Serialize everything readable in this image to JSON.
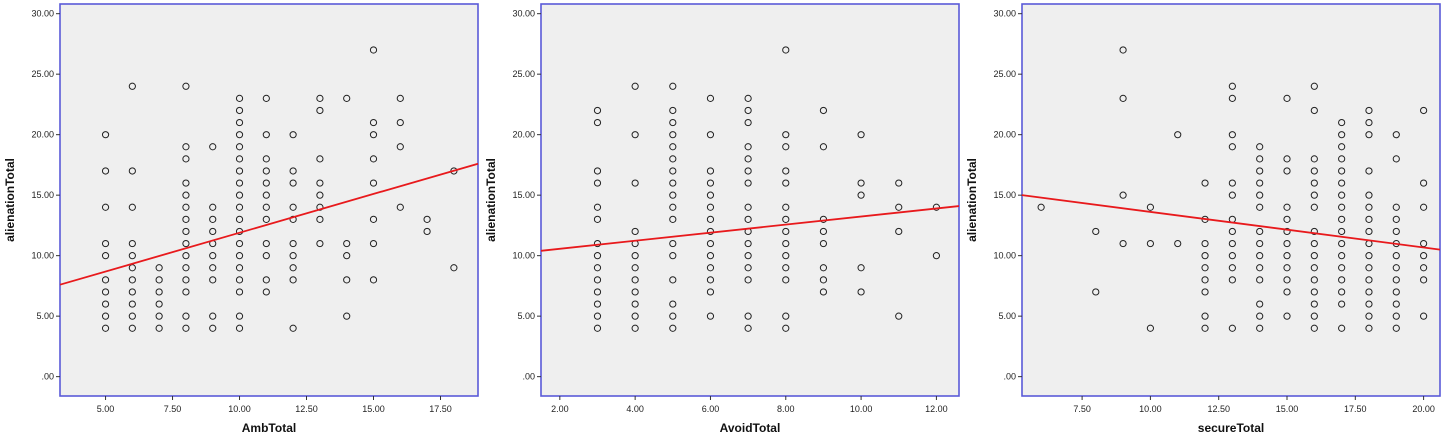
{
  "chart_data": [
    {
      "type": "scatter",
      "xlabel": "AmbTotal",
      "ylabel": "alienationTotal",
      "xlim": [
        3.3,
        18.9
      ],
      "ylim": [
        -1.6,
        30.8
      ],
      "xticks": [
        5,
        7.5,
        10,
        12.5,
        15,
        17.5
      ],
      "xtick_labels": [
        "5.00",
        "7.50",
        "10.00",
        "12.50",
        "15.00",
        "17.50"
      ],
      "yticks": [
        0,
        5,
        10,
        15,
        20,
        25,
        30
      ],
      "ytick_labels": [
        ".00",
        "5.00",
        "10.00",
        "15.00",
        "20.00",
        "25.00",
        "30.00"
      ],
      "grid": false,
      "fit_line": {
        "x": [
          3.3,
          18.9
        ],
        "y": [
          7.6,
          17.6
        ],
        "color": "#e8191c"
      },
      "points": [
        [
          5,
          20
        ],
        [
          5,
          17
        ],
        [
          5,
          14
        ],
        [
          5,
          11
        ],
        [
          5,
          10
        ],
        [
          5,
          8
        ],
        [
          5,
          7
        ],
        [
          5,
          6
        ],
        [
          5,
          5
        ],
        [
          5,
          4
        ],
        [
          6,
          24
        ],
        [
          6,
          17
        ],
        [
          6,
          14
        ],
        [
          6,
          11
        ],
        [
          6,
          10
        ],
        [
          6,
          9
        ],
        [
          6,
          8
        ],
        [
          6,
          7
        ],
        [
          6,
          6
        ],
        [
          6,
          5
        ],
        [
          6,
          4
        ],
        [
          7,
          9
        ],
        [
          7,
          8
        ],
        [
          7,
          7
        ],
        [
          7,
          6
        ],
        [
          7,
          5
        ],
        [
          7,
          4
        ],
        [
          8,
          24
        ],
        [
          8,
          19
        ],
        [
          8,
          18
        ],
        [
          8,
          16
        ],
        [
          8,
          15
        ],
        [
          8,
          14
        ],
        [
          8,
          13
        ],
        [
          8,
          12
        ],
        [
          8,
          11
        ],
        [
          8,
          10
        ],
        [
          8,
          9
        ],
        [
          8,
          8
        ],
        [
          8,
          7
        ],
        [
          8,
          5
        ],
        [
          8,
          4
        ],
        [
          9,
          19
        ],
        [
          9,
          14
        ],
        [
          9,
          13
        ],
        [
          9,
          12
        ],
        [
          9,
          11
        ],
        [
          9,
          10
        ],
        [
          9,
          9
        ],
        [
          9,
          8
        ],
        [
          9,
          5
        ],
        [
          9,
          4
        ],
        [
          10,
          23
        ],
        [
          10,
          22
        ],
        [
          10,
          21
        ],
        [
          10,
          20
        ],
        [
          10,
          19
        ],
        [
          10,
          18
        ],
        [
          10,
          17
        ],
        [
          10,
          16
        ],
        [
          10,
          15
        ],
        [
          10,
          14
        ],
        [
          10,
          13
        ],
        [
          10,
          12
        ],
        [
          10,
          11
        ],
        [
          10,
          10
        ],
        [
          10,
          9
        ],
        [
          10,
          8
        ],
        [
          10,
          7
        ],
        [
          10,
          5
        ],
        [
          10,
          4
        ],
        [
          11,
          23
        ],
        [
          11,
          20
        ],
        [
          11,
          18
        ],
        [
          11,
          17
        ],
        [
          11,
          16
        ],
        [
          11,
          15
        ],
        [
          11,
          14
        ],
        [
          11,
          13
        ],
        [
          11,
          11
        ],
        [
          11,
          10
        ],
        [
          11,
          8
        ],
        [
          11,
          7
        ],
        [
          12,
          20
        ],
        [
          12,
          17
        ],
        [
          12,
          16
        ],
        [
          12,
          14
        ],
        [
          12,
          13
        ],
        [
          12,
          11
        ],
        [
          12,
          10
        ],
        [
          12,
          9
        ],
        [
          12,
          8
        ],
        [
          12,
          4
        ],
        [
          13,
          23
        ],
        [
          13,
          22
        ],
        [
          13,
          18
        ],
        [
          13,
          16
        ],
        [
          13,
          15
        ],
        [
          13,
          14
        ],
        [
          13,
          13
        ],
        [
          13,
          11
        ],
        [
          14,
          23
        ],
        [
          14,
          11
        ],
        [
          14,
          10
        ],
        [
          14,
          8
        ],
        [
          14,
          5
        ],
        [
          15,
          27
        ],
        [
          15,
          21
        ],
        [
          15,
          20
        ],
        [
          15,
          18
        ],
        [
          15,
          16
        ],
        [
          15,
          13
        ],
        [
          15,
          11
        ],
        [
          15,
          8
        ],
        [
          16,
          23
        ],
        [
          16,
          21
        ],
        [
          16,
          19
        ],
        [
          16,
          14
        ],
        [
          17,
          13
        ],
        [
          17,
          12
        ],
        [
          18,
          17
        ],
        [
          18,
          9
        ]
      ]
    },
    {
      "type": "scatter",
      "xlabel": "AvoidTotal",
      "ylabel": "alienationTotal",
      "xlim": [
        1.5,
        12.6
      ],
      "ylim": [
        -1.6,
        30.8
      ],
      "xticks": [
        2,
        4,
        6,
        8,
        10,
        12
      ],
      "xtick_labels": [
        "2.00",
        "4.00",
        "6.00",
        "8.00",
        "10.00",
        "12.00"
      ],
      "yticks": [
        0,
        5,
        10,
        15,
        20,
        25,
        30
      ],
      "ytick_labels": [
        ".00",
        "5.00",
        "10.00",
        "15.00",
        "20.00",
        "25.00",
        "30.00"
      ],
      "grid": false,
      "fit_line": {
        "x": [
          1.5,
          12.6
        ],
        "y": [
          10.4,
          14.1
        ],
        "color": "#e8191c"
      },
      "points": [
        [
          3,
          22
        ],
        [
          3,
          21
        ],
        [
          3,
          17
        ],
        [
          3,
          16
        ],
        [
          3,
          14
        ],
        [
          3,
          13
        ],
        [
          3,
          11
        ],
        [
          3,
          10
        ],
        [
          3,
          9
        ],
        [
          3,
          8
        ],
        [
          3,
          7
        ],
        [
          3,
          6
        ],
        [
          3,
          5
        ],
        [
          3,
          4
        ],
        [
          4,
          24
        ],
        [
          4,
          20
        ],
        [
          4,
          16
        ],
        [
          4,
          12
        ],
        [
          4,
          11
        ],
        [
          4,
          10
        ],
        [
          4,
          9
        ],
        [
          4,
          8
        ],
        [
          4,
          7
        ],
        [
          4,
          6
        ],
        [
          4,
          5
        ],
        [
          4,
          4
        ],
        [
          5,
          24
        ],
        [
          5,
          22
        ],
        [
          5,
          21
        ],
        [
          5,
          20
        ],
        [
          5,
          19
        ],
        [
          5,
          18
        ],
        [
          5,
          17
        ],
        [
          5,
          16
        ],
        [
          5,
          15
        ],
        [
          5,
          14
        ],
        [
          5,
          13
        ],
        [
          5,
          11
        ],
        [
          5,
          10
        ],
        [
          5,
          8
        ],
        [
          5,
          6
        ],
        [
          5,
          5
        ],
        [
          5,
          4
        ],
        [
          6,
          23
        ],
        [
          6,
          20
        ],
        [
          6,
          17
        ],
        [
          6,
          16
        ],
        [
          6,
          15
        ],
        [
          6,
          14
        ],
        [
          6,
          13
        ],
        [
          6,
          12
        ],
        [
          6,
          11
        ],
        [
          6,
          10
        ],
        [
          6,
          9
        ],
        [
          6,
          8
        ],
        [
          6,
          7
        ],
        [
          6,
          5
        ],
        [
          7,
          23
        ],
        [
          7,
          22
        ],
        [
          7,
          21
        ],
        [
          7,
          19
        ],
        [
          7,
          18
        ],
        [
          7,
          17
        ],
        [
          7,
          16
        ],
        [
          7,
          14
        ],
        [
          7,
          13
        ],
        [
          7,
          12
        ],
        [
          7,
          11
        ],
        [
          7,
          10
        ],
        [
          7,
          9
        ],
        [
          7,
          8
        ],
        [
          7,
          5
        ],
        [
          7,
          4
        ],
        [
          8,
          27
        ],
        [
          8,
          20
        ],
        [
          8,
          19
        ],
        [
          8,
          17
        ],
        [
          8,
          16
        ],
        [
          8,
          14
        ],
        [
          8,
          13
        ],
        [
          8,
          12
        ],
        [
          8,
          11
        ],
        [
          8,
          10
        ],
        [
          8,
          9
        ],
        [
          8,
          8
        ],
        [
          8,
          5
        ],
        [
          8,
          4
        ],
        [
          9,
          22
        ],
        [
          9,
          19
        ],
        [
          9,
          13
        ],
        [
          9,
          12
        ],
        [
          9,
          11
        ],
        [
          9,
          9
        ],
        [
          9,
          8
        ],
        [
          9,
          7
        ],
        [
          10,
          20
        ],
        [
          10,
          16
        ],
        [
          10,
          15
        ],
        [
          10,
          9
        ],
        [
          10,
          7
        ],
        [
          11,
          16
        ],
        [
          11,
          14
        ],
        [
          11,
          12
        ],
        [
          11,
          5
        ],
        [
          12,
          14
        ],
        [
          12,
          10
        ]
      ]
    },
    {
      "type": "scatter",
      "xlabel": "secureTotal",
      "ylabel": "alienationTotal",
      "xlim": [
        5.3,
        20.6
      ],
      "ylim": [
        -1.6,
        30.8
      ],
      "xticks": [
        7.5,
        10,
        12.5,
        15,
        17.5,
        20
      ],
      "xtick_labels": [
        "7.50",
        "10.00",
        "12.50",
        "15.00",
        "17.50",
        "20.00"
      ],
      "yticks": [
        0,
        5,
        10,
        15,
        20,
        25,
        30
      ],
      "ytick_labels": [
        ".00",
        "5.00",
        "10.00",
        "15.00",
        "20.00",
        "25.00",
        "30.00"
      ],
      "grid": false,
      "fit_line": {
        "x": [
          5.3,
          20.6
        ],
        "y": [
          15.0,
          10.5
        ],
        "color": "#e8191c"
      },
      "points": [
        [
          6,
          14
        ],
        [
          8,
          12
        ],
        [
          8,
          7
        ],
        [
          9,
          27
        ],
        [
          9,
          23
        ],
        [
          9,
          15
        ],
        [
          9,
          11
        ],
        [
          10,
          14
        ],
        [
          10,
          11
        ],
        [
          10,
          4
        ],
        [
          11,
          20
        ],
        [
          11,
          11
        ],
        [
          12,
          16
        ],
        [
          12,
          13
        ],
        [
          12,
          11
        ],
        [
          12,
          10
        ],
        [
          12,
          9
        ],
        [
          12,
          8
        ],
        [
          12,
          7
        ],
        [
          12,
          5
        ],
        [
          12,
          4
        ],
        [
          13,
          24
        ],
        [
          13,
          23
        ],
        [
          13,
          20
        ],
        [
          13,
          19
        ],
        [
          13,
          16
        ],
        [
          13,
          15
        ],
        [
          13,
          13
        ],
        [
          13,
          12
        ],
        [
          13,
          11
        ],
        [
          13,
          10
        ],
        [
          13,
          9
        ],
        [
          13,
          8
        ],
        [
          13,
          4
        ],
        [
          14,
          19
        ],
        [
          14,
          18
        ],
        [
          14,
          17
        ],
        [
          14,
          16
        ],
        [
          14,
          15
        ],
        [
          14,
          14
        ],
        [
          14,
          12
        ],
        [
          14,
          11
        ],
        [
          14,
          10
        ],
        [
          14,
          9
        ],
        [
          14,
          8
        ],
        [
          14,
          6
        ],
        [
          14,
          5
        ],
        [
          14,
          4
        ],
        [
          15,
          23
        ],
        [
          15,
          18
        ],
        [
          15,
          17
        ],
        [
          15,
          14
        ],
        [
          15,
          13
        ],
        [
          15,
          12
        ],
        [
          15,
          11
        ],
        [
          15,
          10
        ],
        [
          15,
          9
        ],
        [
          15,
          8
        ],
        [
          15,
          7
        ],
        [
          15,
          5
        ],
        [
          16,
          24
        ],
        [
          16,
          22
        ],
        [
          16,
          18
        ],
        [
          16,
          17
        ],
        [
          16,
          16
        ],
        [
          16,
          15
        ],
        [
          16,
          14
        ],
        [
          16,
          12
        ],
        [
          16,
          11
        ],
        [
          16,
          10
        ],
        [
          16,
          9
        ],
        [
          16,
          8
        ],
        [
          16,
          7
        ],
        [
          16,
          6
        ],
        [
          16,
          5
        ],
        [
          16,
          4
        ],
        [
          17,
          21
        ],
        [
          17,
          20
        ],
        [
          17,
          19
        ],
        [
          17,
          18
        ],
        [
          17,
          17
        ],
        [
          17,
          16
        ],
        [
          17,
          15
        ],
        [
          17,
          14
        ],
        [
          17,
          13
        ],
        [
          17,
          12
        ],
        [
          17,
          11
        ],
        [
          17,
          10
        ],
        [
          17,
          9
        ],
        [
          17,
          8
        ],
        [
          17,
          7
        ],
        [
          17,
          6
        ],
        [
          17,
          4
        ],
        [
          18,
          22
        ],
        [
          18,
          21
        ],
        [
          18,
          20
        ],
        [
          18,
          17
        ],
        [
          18,
          15
        ],
        [
          18,
          14
        ],
        [
          18,
          13
        ],
        [
          18,
          12
        ],
        [
          18,
          11
        ],
        [
          18,
          10
        ],
        [
          18,
          9
        ],
        [
          18,
          8
        ],
        [
          18,
          7
        ],
        [
          18,
          6
        ],
        [
          18,
          5
        ],
        [
          18,
          4
        ],
        [
          19,
          20
        ],
        [
          19,
          18
        ],
        [
          19,
          14
        ],
        [
          19,
          13
        ],
        [
          19,
          12
        ],
        [
          19,
          11
        ],
        [
          19,
          10
        ],
        [
          19,
          9
        ],
        [
          19,
          8
        ],
        [
          19,
          7
        ],
        [
          19,
          6
        ],
        [
          19,
          5
        ],
        [
          19,
          4
        ],
        [
          20,
          22
        ],
        [
          20,
          16
        ],
        [
          20,
          14
        ],
        [
          20,
          11
        ],
        [
          20,
          10
        ],
        [
          20,
          9
        ],
        [
          20,
          8
        ],
        [
          20,
          5
        ]
      ]
    }
  ],
  "colors": {
    "plot_background": "#efefef",
    "plot_border": "#5a5ad8",
    "point_stroke": "#222222",
    "fit_line": "#e8191c"
  }
}
